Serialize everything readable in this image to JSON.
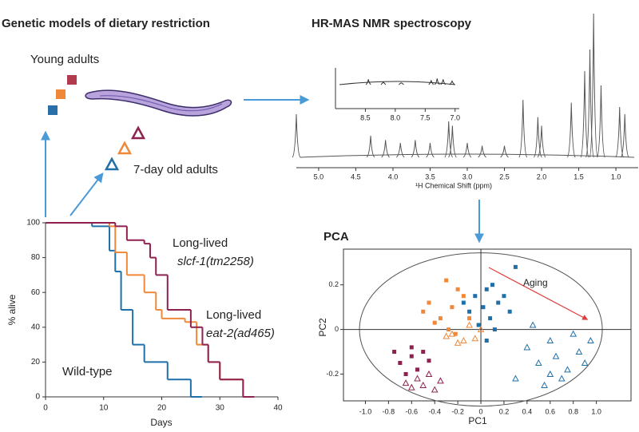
{
  "header": {
    "left": "Genetic models of dietary restriction",
    "right": "HR-MAS NMR spectroscopy"
  },
  "labels": {
    "young": "Young adults",
    "old": "7-day old adults"
  },
  "chart_data": [
    {
      "type": "step",
      "xlabel": "Days",
      "ylabel": "% alive",
      "xlim": [
        0,
        40
      ],
      "ylim": [
        0,
        100
      ],
      "xticks": [
        0,
        10,
        20,
        30,
        40
      ],
      "yticks": [
        0,
        20,
        40,
        60,
        80,
        100
      ],
      "series": [
        {
          "color": "#1f6fa8",
          "x": [
            0,
            8,
            11,
            12,
            13,
            15,
            17,
            21,
            25
          ],
          "values": [
            100,
            98,
            84,
            72,
            50,
            30,
            20,
            10,
            0
          ]
        },
        {
          "color": "#f0883a",
          "x": [
            0,
            11,
            12,
            14,
            17,
            19,
            20,
            24,
            26,
            28,
            30,
            34
          ],
          "values": [
            100,
            98,
            83,
            70,
            60,
            50,
            45,
            43,
            30,
            20,
            10,
            0
          ]
        },
        {
          "color": "#8e2150",
          "x": [
            0,
            12,
            14,
            17,
            18,
            19,
            21,
            25,
            27,
            28,
            30,
            34
          ],
          "values": [
            100,
            98,
            90,
            88,
            80,
            70,
            50,
            40,
            30,
            20,
            10,
            0
          ]
        }
      ],
      "annotations": [
        {
          "text": "Long-lived",
          "color": "#f0883a",
          "italic": false
        },
        {
          "text": "slcf-1(tm2258)",
          "color": "#f0883a",
          "italic": true
        },
        {
          "text": "Long-lived",
          "color": "#8e2150",
          "italic": false
        },
        {
          "text": "eat-2(ad465)",
          "color": "#8e2150",
          "italic": true
        },
        {
          "text": "Wild-type",
          "color": "#1f6fa8",
          "italic": false
        }
      ]
    },
    {
      "type": "spectrum",
      "xlabel": "¹H Chemical Shift (ppm)",
      "xlim": [
        5.3,
        0.7
      ],
      "xticks": [
        {
          "value": 5,
          "label": "5.0"
        },
        4.5,
        {
          "value": 4,
          "label": "4.0"
        },
        3.5,
        {
          "value": 3,
          "label": "3.0"
        },
        2.5,
        {
          "value": 2,
          "label": "2.0"
        },
        1.5,
        {
          "value": 1,
          "label": "1.0"
        }
      ],
      "color": "#555555",
      "x": [
        5.3,
        4.3,
        4.1,
        3.9,
        3.7,
        3.5,
        3.25,
        3.2,
        3.0,
        2.8,
        2.5,
        2.25,
        2.05,
        2.0,
        1.6,
        1.42,
        1.35,
        1.3,
        1.2,
        0.95,
        0.88
      ],
      "values": [
        30,
        15,
        12,
        10,
        12,
        10,
        25,
        22,
        10,
        8,
        8,
        40,
        28,
        22,
        38,
        60,
        75,
        100,
        50,
        35,
        30
      ]
    },
    {
      "type": "spectrum",
      "xlim": [
        9.0,
        6.93
      ],
      "xticks": [
        8.5,
        {
          "value": 8,
          "label": "8.0"
        },
        7.5,
        {
          "value": 7,
          "label": "7.0"
        }
      ],
      "color": "#333333",
      "x": [
        8.45,
        8.2,
        7.9,
        7.4,
        7.3,
        7.2,
        7.05
      ],
      "values": [
        30,
        15,
        10,
        25,
        35,
        30,
        20
      ]
    },
    {
      "type": "scatter",
      "title": "PCA",
      "xlabel": "PC1",
      "ylabel": "PC2",
      "xlim": [
        -1.19,
        1.3
      ],
      "ylim": [
        -0.32,
        0.36
      ],
      "xticks": [
        {
          "value": -1,
          "label": "-1.0"
        },
        -0.8,
        -0.6,
        -0.4,
        -0.2,
        0,
        0.2,
        0.4,
        0.6,
        0.8,
        {
          "value": 1,
          "label": "1.0"
        }
      ],
      "yticks": [
        -0.2,
        0,
        0.2
      ],
      "annotation": {
        "text": "Aging",
        "color": "#e03c3c"
      },
      "series": [
        {
          "color": "#1f6fa8",
          "marker": "square",
          "x": [
            0.05,
            0.1,
            -0.05,
            0.02,
            0.15,
            -0.1,
            0.08,
            0.2,
            -0.02,
            0.12,
            0.3,
            0.25,
            -0.15,
            0.05
          ],
          "values": [
            0.18,
            0.2,
            0.15,
            0.1,
            0.12,
            0.08,
            0.05,
            0.15,
            0.02,
            0.0,
            0.28,
            0.08,
            0.12,
            -0.05
          ]
        },
        {
          "color": "#f0883a",
          "marker": "square",
          "x": [
            -0.3,
            -0.2,
            -0.25,
            -0.35,
            -0.4,
            -0.15,
            -0.28,
            -0.1,
            -0.45,
            -0.22,
            -0.5
          ],
          "values": [
            0.22,
            0.18,
            0.1,
            0.05,
            0.03,
            0.15,
            0.0,
            0.05,
            0.12,
            -0.02,
            0.08
          ]
        },
        {
          "color": "#8e2150",
          "marker": "square",
          "x": [
            -0.75,
            -0.7,
            -0.6,
            -0.55,
            -0.5,
            -0.65,
            -0.45,
            -0.6
          ],
          "values": [
            -0.1,
            -0.15,
            -0.12,
            -0.18,
            -0.1,
            -0.2,
            -0.14,
            -0.08
          ]
        },
        {
          "color": "#1f6fa8",
          "marker": "triangle",
          "x": [
            0.45,
            0.6,
            0.8,
            0.95,
            0.5,
            0.65,
            0.75,
            0.85,
            0.7,
            0.55,
            0.9,
            0.4,
            0.3,
            0.6
          ],
          "values": [
            0.02,
            -0.05,
            -0.02,
            -0.05,
            -0.15,
            -0.12,
            -0.18,
            -0.1,
            -0.22,
            -0.25,
            -0.15,
            -0.08,
            -0.22,
            -0.2
          ]
        },
        {
          "color": "#f0883a",
          "marker": "triangle",
          "x": [
            -0.25,
            -0.15,
            -0.1,
            -0.05,
            -0.2,
            0.0,
            -0.3
          ],
          "values": [
            -0.02,
            -0.05,
            0.02,
            -0.04,
            -0.06,
            0.0,
            -0.03
          ]
        },
        {
          "color": "#8e2150",
          "marker": "triangle",
          "x": [
            -0.55,
            -0.6,
            -0.45,
            -0.35,
            -0.65,
            -0.4,
            -0.5
          ],
          "values": [
            -0.22,
            -0.26,
            -0.2,
            -0.23,
            -0.24,
            -0.27,
            -0.25
          ]
        }
      ]
    }
  ]
}
